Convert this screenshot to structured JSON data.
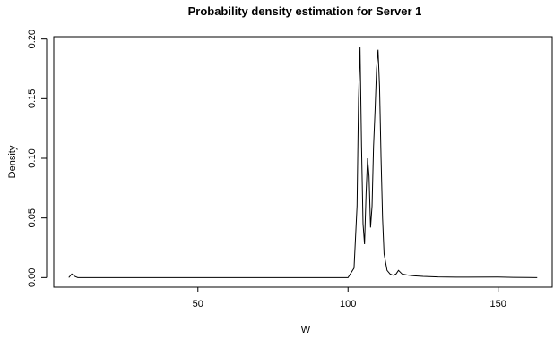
{
  "chart_data": {
    "type": "line",
    "title": "Probability density estimation for Server 1",
    "xlabel": "W",
    "ylabel": "Density",
    "xlim": [
      2,
      168
    ],
    "ylim": [
      -0.008,
      0.202
    ],
    "x_ticks": [
      50,
      100,
      150
    ],
    "x_tick_labels": [
      "50",
      "100",
      "150"
    ],
    "y_ticks": [
      0.0,
      0.05,
      0.1,
      0.15,
      0.2
    ],
    "y_tick_labels": [
      "0.00",
      "0.05",
      "0.10",
      "0.15",
      "0.20"
    ],
    "grid": false,
    "series": [
      {
        "x": [
          7,
          8,
          9,
          10,
          11,
          20,
          40,
          60,
          80,
          100,
          102,
          103,
          103.5,
          104,
          104.5,
          105,
          105.5,
          106,
          106.5,
          107,
          107.5,
          108,
          108.5,
          109,
          109.5,
          110,
          110.5,
          111,
          111.5,
          112,
          113,
          114,
          115,
          116,
          116.8,
          118,
          120,
          122,
          125,
          130,
          140,
          150,
          155,
          160,
          163
        ],
        "y": [
          0.0,
          0.003,
          0.001,
          0.0,
          0.0,
          0.0,
          0.0,
          0.0,
          0.0,
          0.0,
          0.008,
          0.06,
          0.15,
          0.193,
          0.11,
          0.045,
          0.028,
          0.07,
          0.1,
          0.085,
          0.042,
          0.06,
          0.11,
          0.14,
          0.175,
          0.191,
          0.16,
          0.1,
          0.05,
          0.02,
          0.006,
          0.003,
          0.002,
          0.003,
          0.006,
          0.003,
          0.002,
          0.0015,
          0.001,
          0.0005,
          0.0003,
          0.0004,
          0.0002,
          0.0001,
          0.0
        ]
      }
    ]
  }
}
